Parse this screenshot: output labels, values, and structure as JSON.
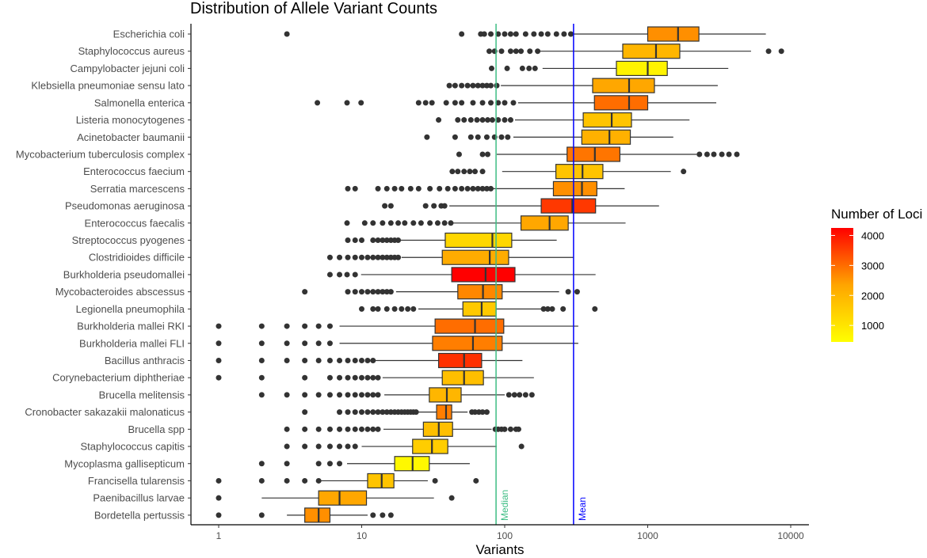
{
  "chart_data": {
    "type": "box",
    "title": "Distribution of Allele Variant Counts",
    "xlabel": "Variants",
    "ylabel": "",
    "xscale": "log10",
    "xlim": [
      0.85,
      13500
    ],
    "xticks": [
      1,
      10,
      100,
      1000,
      10000
    ],
    "xtick_labels": [
      "1",
      "10",
      "100",
      "1000",
      "10000"
    ],
    "reference_lines": [
      {
        "label": "Median",
        "value": 87,
        "color": "#3dbd84"
      },
      {
        "label": "Mean",
        "value": 303,
        "color": "#0000ff"
      }
    ],
    "legend": {
      "title": "Number of Loci",
      "placement": "right",
      "ticks": [
        1000,
        2000,
        3000,
        4000
      ],
      "tick_labels": [
        "1000",
        "2000",
        "3000",
        "4000"
      ],
      "range": [
        450,
        4250
      ],
      "low_color": "#ffff00",
      "high_color": "#ff0000"
    },
    "series": [
      {
        "name": "Escherichia coli",
        "loci": 2600,
        "whisker_low": 300,
        "q1": 1000,
        "median": 1630,
        "q3": 2280,
        "whisker_high": 6700,
        "outliers": [
          3,
          50,
          68,
          72,
          80,
          90,
          100,
          110,
          120,
          140,
          160,
          180,
          200,
          230,
          260,
          290
        ]
      },
      {
        "name": "Staphylococcus aureus",
        "loci": 2000,
        "whisker_low": 173,
        "q1": 669,
        "median": 1143,
        "q3": 1676,
        "whisker_high": 5280,
        "outliers": [
          78,
          85,
          95,
          110,
          120,
          130,
          150,
          170,
          7000,
          8600
        ]
      },
      {
        "name": "Campylobacter jejuni coli",
        "loci": 700,
        "whisker_low": 184,
        "q1": 604,
        "median": 1000,
        "q3": 1370,
        "whisker_high": 3660,
        "outliers": [
          81,
          104,
          133,
          148,
          163
        ]
      },
      {
        "name": "Klebsiella pneumoniae sensu lato",
        "loci": 2300,
        "whisker_low": 94,
        "q1": 412,
        "median": 741,
        "q3": 1114,
        "whisker_high": 3090,
        "outliers": [
          41,
          45,
          50,
          55,
          60,
          65,
          70,
          75,
          80,
          88
        ]
      },
      {
        "name": "Salmonella enterica",
        "loci": 3000,
        "whisker_low": 124,
        "q1": 424,
        "median": 741,
        "q3": 1000,
        "whisker_high": 3016,
        "outliers": [
          4.9,
          7.9,
          9.9,
          25,
          28,
          31,
          39,
          45,
          50,
          60,
          70,
          80,
          90,
          100,
          115
        ]
      },
      {
        "name": "Listeria monocytogenes",
        "loci": 1700,
        "whisker_low": 118,
        "q1": 354,
        "median": 560,
        "q3": 770,
        "whisker_high": 1960,
        "outliers": [
          34.5,
          47,
          52,
          58,
          64,
          70,
          76,
          82,
          90,
          100,
          110
        ]
      },
      {
        "name": "Acinetobacter baumanii",
        "loci": 2100,
        "whisker_low": 115,
        "q1": 346,
        "median": 540,
        "q3": 756,
        "whisker_high": 1510,
        "outliers": [
          28.6,
          45,
          58,
          65,
          75,
          85,
          95,
          105
        ]
      },
      {
        "name": "Mycobacterium tuberculosis complex",
        "loci": 2900,
        "whisker_low": 88,
        "q1": 273,
        "median": 427,
        "q3": 639,
        "whisker_high": 2200,
        "outliers": [
          48,
          70,
          76,
          2300,
          2600,
          2900,
          3300,
          3700,
          4200
        ]
      },
      {
        "name": "Enterococcus faecium",
        "loci": 1700,
        "whisker_low": 96,
        "q1": 228,
        "median": 350,
        "q3": 486,
        "whisker_high": 1450,
        "outliers": [
          43,
          47,
          52,
          57,
          62,
          70,
          1780
        ]
      },
      {
        "name": "Serratia marcescens",
        "loci": 2600,
        "whisker_low": 82,
        "q1": 219,
        "median": 347,
        "q3": 441,
        "whisker_high": 690,
        "outliers": [
          8,
          9,
          13,
          15,
          17,
          19,
          22,
          25,
          30,
          35,
          40,
          45,
          50,
          55,
          60,
          65,
          70,
          75,
          80
        ]
      },
      {
        "name": "Pseudomonas aeruginosa",
        "loci": 3600,
        "whisker_low": 41,
        "q1": 180,
        "median": 297,
        "q3": 432,
        "whisker_high": 1200,
        "outliers": [
          14.5,
          16,
          28,
          32,
          36,
          38
        ]
      },
      {
        "name": "Enterococcus faecalis",
        "loci": 2300,
        "whisker_low": 42.5,
        "q1": 130,
        "median": 206,
        "q3": 278,
        "whisker_high": 700,
        "outliers": [
          7.9,
          10.5,
          12,
          14,
          16,
          18,
          20,
          23,
          26,
          30,
          34,
          38,
          42
        ]
      },
      {
        "name": "Streptococcus pyogenes",
        "loci": 1300,
        "whisker_low": 18.6,
        "q1": 38.4,
        "median": 82,
        "q3": 112,
        "whisker_high": 231,
        "outliers": [
          8,
          9,
          10,
          12,
          13,
          14,
          15,
          16,
          17,
          18
        ]
      },
      {
        "name": "Clostridioides difficile",
        "loci": 2200,
        "whisker_low": 19,
        "q1": 36.6,
        "median": 78.6,
        "q3": 106.5,
        "whisker_high": 303,
        "outliers": [
          6,
          7,
          8,
          9,
          10,
          11,
          12,
          13,
          14,
          15,
          16,
          17,
          18
        ]
      },
      {
        "name": "Burkholderia pseudomallei",
        "loci": 4250,
        "whisker_low": 9.9,
        "q1": 42.6,
        "median": 73.5,
        "q3": 118,
        "whisker_high": 432,
        "outliers": [
          6,
          7,
          7.9,
          9
        ]
      },
      {
        "name": "Mycobacteroides abscessus",
        "loci": 2700,
        "whisker_low": 17.4,
        "q1": 47,
        "median": 70.5,
        "q3": 96,
        "whisker_high": 240,
        "outliers": [
          4,
          8,
          9,
          10,
          11,
          12,
          13,
          14,
          15,
          16,
          278,
          321
        ]
      },
      {
        "name": "Legionella pneumophila",
        "loci": 1600,
        "whisker_low": 24.9,
        "q1": 51,
        "median": 69,
        "q3": 87,
        "whisker_high": 180,
        "outliers": [
          10,
          12,
          13,
          15,
          17,
          19,
          21,
          23,
          187,
          200,
          215,
          256,
          427
        ]
      },
      {
        "name": "Burkholderia mallei RKI",
        "loci": 3000,
        "whisker_low": 7,
        "q1": 32.6,
        "median": 62,
        "q3": 98.5,
        "whisker_high": 327,
        "outliers": [
          1,
          2,
          3,
          4,
          5,
          6
        ]
      },
      {
        "name": "Burkholderia mallei FLI",
        "loci": 2800,
        "whisker_low": 7,
        "q1": 31.3,
        "median": 60,
        "q3": 96,
        "whisker_high": 327,
        "outliers": [
          1,
          2,
          3,
          4,
          5,
          6
        ]
      },
      {
        "name": "Bacillus anthracis",
        "loci": 3700,
        "whisker_low": 12.5,
        "q1": 34.5,
        "median": 52,
        "q3": 69,
        "whisker_high": 133,
        "outliers": [
          1,
          2,
          3,
          4,
          5,
          6,
          7,
          8,
          9,
          10,
          11,
          12
        ]
      },
      {
        "name": "Corynebacterium diphtheriae",
        "loci": 1800,
        "whisker_low": 14,
        "q1": 36.6,
        "median": 52,
        "q3": 71,
        "whisker_high": 160,
        "outliers": [
          1,
          2,
          4,
          6,
          7,
          8,
          9,
          10,
          11,
          12,
          13
        ]
      },
      {
        "name": "Brucella melitensis",
        "loci": 2000,
        "whisker_low": 14.4,
        "q1": 29.7,
        "median": 39.4,
        "q3": 49.6,
        "whisker_high": 100,
        "outliers": [
          2,
          3,
          4,
          5,
          6,
          7,
          8,
          9,
          10,
          11,
          12,
          13,
          107,
          117,
          127,
          140,
          155
        ]
      },
      {
        "name": "Cronobacter sakazakii malonaticus",
        "loci": 2800,
        "whisker_low": 24,
        "q1": 33.4,
        "median": 38.9,
        "q3": 42.6,
        "whisker_high": 55,
        "outliers": [
          4,
          7,
          8,
          9,
          10,
          11,
          12,
          13,
          14,
          15,
          16,
          17,
          18,
          19,
          20,
          21,
          22,
          23,
          24,
          59,
          62,
          66,
          70,
          75
        ]
      },
      {
        "name": "Brucella spp",
        "loci": 1800,
        "whisker_low": 14.2,
        "q1": 27,
        "median": 34.6,
        "q3": 43.2,
        "whisker_high": 81,
        "outliers": [
          3,
          4,
          5,
          6,
          7,
          8,
          9,
          10,
          11,
          12,
          13,
          86,
          90,
          95,
          100,
          110,
          120,
          125
        ]
      },
      {
        "name": "Staphylococcus capitis",
        "loci": 1500,
        "whisker_low": 10,
        "q1": 22.7,
        "median": 31,
        "q3": 40,
        "whisker_high": 88,
        "outliers": [
          3,
          4,
          5,
          6,
          7,
          8,
          9,
          131
        ]
      },
      {
        "name": "Mycoplasma gallisepticum",
        "loci": 600,
        "whisker_low": 7.9,
        "q1": 17,
        "median": 22.7,
        "q3": 29.7,
        "whisker_high": 57,
        "outliers": [
          2,
          3,
          5,
          6,
          7
        ]
      },
      {
        "name": "Francisella tularensis",
        "loci": 1700,
        "whisker_low": 4.9,
        "q1": 11,
        "median": 13.8,
        "q3": 16.8,
        "whisker_high": 29,
        "outliers": [
          1,
          2,
          3,
          4,
          5,
          32.6,
          63
        ]
      },
      {
        "name": "Paenibacillus larvae",
        "loci": 2300,
        "whisker_low": 2,
        "q1": 5,
        "median": 7,
        "q3": 10.8,
        "whisker_high": 32,
        "outliers": [
          1,
          42.6
        ]
      },
      {
        "name": "Bordetella pertussis",
        "loci": 2600,
        "whisker_low": 3,
        "q1": 4,
        "median": 5,
        "q3": 6,
        "whisker_high": 11,
        "outliers": [
          1,
          2,
          12,
          14,
          16
        ]
      }
    ]
  }
}
